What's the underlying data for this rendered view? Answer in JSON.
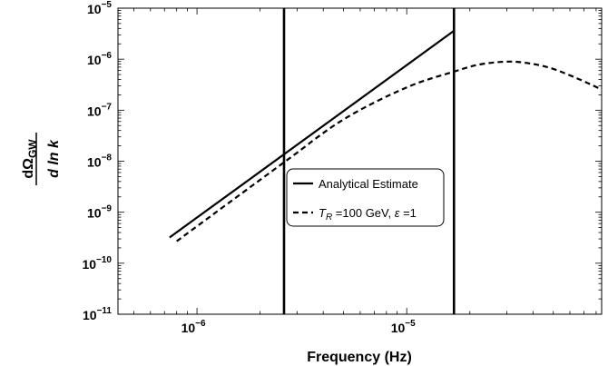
{
  "chart_data": {
    "type": "line",
    "title": "",
    "xlabel": "Frequency (Hz)",
    "ylabel": {
      "numerator": "dΩ",
      "numerator_sub": "GW",
      "denominator": "d ln k"
    },
    "x_scale": "log",
    "y_scale": "log",
    "xlim": [
      4.2e-07,
      8.5e-05
    ],
    "ylim": [
      1e-11,
      1e-05
    ],
    "grid": false,
    "legend_position": "center",
    "x_ticks": [
      {
        "value": 1e-06,
        "label": "10",
        "exp": "−6"
      },
      {
        "value": 1e-05,
        "label": "10",
        "exp": "−5"
      }
    ],
    "y_ticks": [
      {
        "value": 1e-05,
        "label": "10",
        "exp": "−5"
      },
      {
        "value": 1e-06,
        "label": "10",
        "exp": "−6"
      },
      {
        "value": 1e-07,
        "label": "10",
        "exp": "−7"
      },
      {
        "value": 1e-08,
        "label": "10",
        "exp": "−8"
      },
      {
        "value": 1e-09,
        "label": "10",
        "exp": "−9"
      },
      {
        "value": 1e-10,
        "label": "10",
        "exp": "−10"
      },
      {
        "value": 1e-11,
        "label": "10",
        "exp": "−11"
      }
    ],
    "vertical_lines": [
      2.6e-06,
      1.68e-05
    ],
    "series": [
      {
        "name": "Analytical Estimate",
        "style": "solid",
        "x": [
          7.4e-07,
          1.68e-05
        ],
        "y": [
          3.2e-10,
          3.6e-06
        ]
      },
      {
        "name": "T_R =100 GeV, ε =1",
        "name_parts": {
          "var": "T",
          "sub": "R",
          "rest": " =100 GeV, ",
          "eps": "ε",
          "tail": " =1"
        },
        "style": "dashed",
        "x": [
          8e-07,
          2.6e-06,
          5e-06,
          1e-05,
          1.68e-05,
          2.2e-05,
          2.9e-05,
          3.6e-05,
          4.8e-05,
          6.5e-05,
          8.4e-05
        ],
        "y": [
          2.7e-10,
          9.5e-09,
          6.6e-08,
          2.8e-07,
          5.7e-07,
          7.8e-07,
          8.9e-07,
          8.6e-07,
          6.8e-07,
          4.2e-07,
          2.6e-07
        ]
      }
    ]
  }
}
